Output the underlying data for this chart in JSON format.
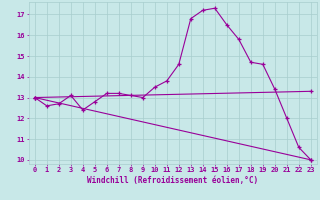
{
  "background_color": "#c8e8e8",
  "grid_color": "#a8cece",
  "line_color": "#990099",
  "marker": "+",
  "xlabel": "Windchill (Refroidissement éolien,°C)",
  "xlabel_color": "#990099",
  "xlim": [
    -0.5,
    23.5
  ],
  "ylim": [
    9.8,
    17.6
  ],
  "yticks": [
    10,
    11,
    12,
    13,
    14,
    15,
    16,
    17
  ],
  "xticks": [
    0,
    1,
    2,
    3,
    4,
    5,
    6,
    7,
    8,
    9,
    10,
    11,
    12,
    13,
    14,
    15,
    16,
    17,
    18,
    19,
    20,
    21,
    22,
    23
  ],
  "series": [
    {
      "x": [
        0,
        1,
        2,
        3,
        4,
        5,
        6,
        7,
        8,
        9,
        10,
        11,
        12,
        13,
        14,
        15,
        16,
        17,
        18,
        19,
        20,
        21,
        22,
        23
      ],
      "y": [
        13.0,
        12.6,
        12.7,
        13.1,
        12.4,
        12.8,
        13.2,
        13.2,
        13.1,
        13.0,
        13.5,
        13.8,
        14.6,
        16.8,
        17.2,
        17.3,
        16.5,
        15.8,
        14.7,
        14.6,
        13.4,
        12.0,
        10.6,
        10.0
      ]
    },
    {
      "x": [
        0,
        23
      ],
      "y": [
        13.0,
        13.3
      ]
    },
    {
      "x": [
        0,
        23
      ],
      "y": [
        13.0,
        10.0
      ]
    }
  ]
}
